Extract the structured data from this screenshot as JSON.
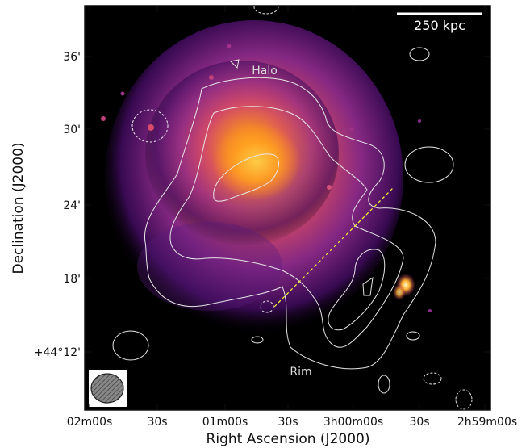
{
  "figure": {
    "x_axis_label": "Right Ascension (J2000)",
    "y_axis_label": "Declination (J2000)",
    "x_ticks": [
      "02m00s",
      "30s",
      "01m00s",
      "30s",
      "3h00m00s",
      "30s",
      "2h59m00s"
    ],
    "y_ticks": [
      "36'",
      "30'",
      "24'",
      "18'",
      "+44°12'"
    ],
    "scale_bar_label": "250 kpc",
    "annotations": {
      "halo": "Halo",
      "rim": "Rim"
    },
    "colors": {
      "background": "#000000",
      "emission_core": "#ffb020",
      "emission_mid": "#d64a6a",
      "emission_outer": "#6a1a8a",
      "contour": "#e6e6e6",
      "profile_line": "#ffff33"
    }
  }
}
